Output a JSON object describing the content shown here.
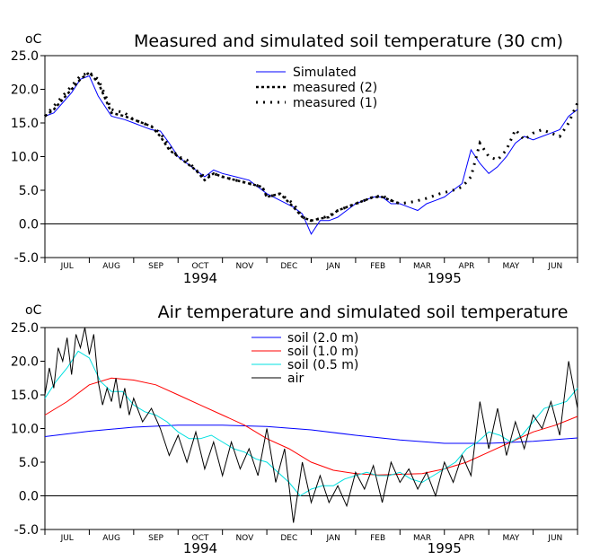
{
  "chart_data": [
    {
      "type": "line",
      "title": "Measured and simulated soil temperature (30 cm)",
      "ylabel": "oC",
      "ylim": [
        -5,
        25
      ],
      "yticks": [
        "25.0",
        "20.0",
        "15.0",
        "10.0",
        "5.0",
        "0.0",
        "-5.0"
      ],
      "month_labels": [
        "JUL",
        "AUG",
        "SEP",
        "OCT",
        "NOV",
        "DEC",
        "JAN",
        "FEB",
        "MAR",
        "APR",
        "MAY",
        "JUN"
      ],
      "years": [
        "1994",
        "1995"
      ],
      "x_unit": "months since 1 Jul 1994",
      "series": [
        {
          "name": "Simulated",
          "color": "#0000ff",
          "style": "solid",
          "x": [
            0,
            0.2,
            0.4,
            0.6,
            0.8,
            1.0,
            1.2,
            1.5,
            1.8,
            2.0,
            2.2,
            2.4,
            2.6,
            2.8,
            3.0,
            3.2,
            3.4,
            3.6,
            3.8,
            4.0,
            4.3,
            4.6,
            4.9,
            5.0,
            5.3,
            5.6,
            5.8,
            6.0,
            6.1,
            6.2,
            6.4,
            6.6,
            6.8,
            7.0,
            7.2,
            7.4,
            7.6,
            7.8,
            8.0,
            8.2,
            8.4,
            8.6,
            8.8,
            9.0,
            9.2,
            9.4,
            9.6,
            9.8,
            10.0,
            10.2,
            10.4,
            10.6,
            10.8,
            11.0,
            11.2,
            11.4,
            11.6,
            11.8,
            12.0
          ],
          "values": [
            16,
            16.5,
            18,
            19.5,
            21.5,
            22,
            19,
            16,
            15.5,
            15,
            14.5,
            14,
            13.8,
            12,
            10,
            9,
            8,
            7,
            8,
            7.5,
            7,
            6.5,
            5,
            4.5,
            3.5,
            2.5,
            1.5,
            -1.5,
            -0.5,
            0.5,
            0.5,
            1,
            2,
            3,
            3.5,
            4,
            4,
            3,
            3,
            2.5,
            2,
            3,
            3.5,
            4,
            5,
            6,
            11,
            9,
            7.5,
            8.5,
            10,
            12,
            13,
            12.5,
            13,
            13.5,
            14,
            16,
            17
          ]
        },
        {
          "name": "measured (2)",
          "color": "#000000",
          "style": "dashed",
          "x": [
            0,
            0.2,
            0.4,
            0.6,
            0.8,
            1.0,
            1.2,
            1.5,
            1.8,
            2.0,
            2.2,
            2.4,
            2.6,
            2.8,
            3.0,
            3.2,
            3.4,
            3.6,
            3.8,
            4.0,
            4.3,
            4.6,
            4.9,
            5.0,
            5.3,
            5.6,
            5.8,
            6.0,
            6.2,
            6.4,
            6.6,
            6.8,
            7.0,
            7.2,
            7.4,
            7.6,
            7.8,
            8.0
          ],
          "values": [
            16,
            17,
            18.5,
            20,
            21.5,
            22.5,
            21,
            16.5,
            16,
            15.5,
            15,
            14.5,
            13,
            11,
            10,
            9,
            8,
            6.5,
            7.5,
            7,
            6.5,
            6,
            5.5,
            4,
            4.5,
            2.5,
            1,
            0.5,
            0.8,
            1,
            2,
            2.5,
            3,
            3.5,
            4,
            4,
            3.5,
            3
          ]
        },
        {
          "name": "measured (1)",
          "color": "#000000",
          "style": "dotted",
          "x": [
            0,
            0.2,
            0.4,
            0.6,
            0.8,
            1.0,
            1.2,
            1.5,
            1.8,
            2.0,
            2.2,
            2.4,
            2.6,
            2.8,
            3.0,
            3.2,
            3.4,
            3.6,
            3.8,
            4.0,
            4.3,
            4.6,
            4.9,
            5.0,
            5.3,
            5.6,
            5.8,
            6.0,
            6.2,
            6.4,
            6.6,
            6.8,
            7.0,
            7.2,
            7.4,
            7.6,
            7.8,
            8.0,
            8.3,
            8.6,
            8.9,
            9.2,
            9.4,
            9.6,
            9.8,
            10.0,
            10.2,
            10.4,
            10.6,
            10.8,
            11.0,
            11.2,
            11.4,
            11.6,
            11.8,
            12.0
          ],
          "values": [
            16,
            17.5,
            19,
            20.5,
            22,
            22.5,
            21.5,
            17,
            16.5,
            15.5,
            15,
            14.5,
            13.5,
            11.5,
            10,
            9.5,
            8,
            7,
            7.5,
            7,
            6.5,
            6,
            5.5,
            4,
            4.5,
            3,
            1,
            0.5,
            0.8,
            1.2,
            2,
            2.5,
            3,
            3.5,
            4,
            4.2,
            3.5,
            3,
            3.3,
            3.8,
            4.5,
            5,
            5.5,
            7,
            12,
            10,
            9.5,
            11,
            14,
            12.5,
            13.5,
            14,
            13.5,
            13,
            15,
            18
          ]
        }
      ]
    },
    {
      "type": "line",
      "title": "Air temperature and simulated soil temperature",
      "ylabel": "oC",
      "ylim": [
        -5,
        25
      ],
      "yticks": [
        "25.0",
        "20.0",
        "15.0",
        "10.0",
        "5.0",
        "0.0",
        "-5.0"
      ],
      "month_labels": [
        "JUL",
        "AUG",
        "SEP",
        "OCT",
        "NOV",
        "DEC",
        "JAN",
        "FEB",
        "MAR",
        "APR",
        "MAY",
        "JUN"
      ],
      "years": [
        "1994",
        "1995"
      ],
      "x_unit": "months since 1 Jul 1994",
      "series": [
        {
          "name": "soil (2.0 m)",
          "color": "#0000ff",
          "x": [
            0,
            1,
            2,
            3,
            4,
            5,
            6,
            7,
            8,
            9,
            10,
            11,
            12
          ],
          "values": [
            8.8,
            9.6,
            10.2,
            10.5,
            10.5,
            10.3,
            9.8,
            9,
            8.3,
            7.8,
            7.8,
            8.1,
            8.6
          ]
        },
        {
          "name": "soil (1.0 m)",
          "color": "#ff0000",
          "x": [
            0,
            0.5,
            1,
            1.5,
            2,
            2.5,
            3,
            3.5,
            4,
            4.5,
            5,
            5.5,
            6,
            6.5,
            7,
            7.5,
            8,
            8.5,
            9,
            9.5,
            10,
            10.5,
            11,
            11.5,
            12
          ],
          "values": [
            12,
            14,
            16.5,
            17.5,
            17.2,
            16.5,
            15,
            13.5,
            12,
            10.5,
            8.5,
            7,
            5,
            3.8,
            3.3,
            3.1,
            3.2,
            3.3,
            4,
            5,
            6.5,
            8,
            9.5,
            10.5,
            11.8
          ]
        },
        {
          "name": "soil (0.5 m)",
          "color": "#00e0e0",
          "x": [
            0,
            0.25,
            0.5,
            0.75,
            1,
            1.25,
            1.5,
            1.75,
            2,
            2.25,
            2.5,
            2.75,
            3,
            3.25,
            3.5,
            3.75,
            4,
            4.25,
            4.5,
            4.75,
            5,
            5.25,
            5.5,
            5.75,
            6,
            6.25,
            6.5,
            6.75,
            7,
            7.25,
            7.5,
            7.75,
            8,
            8.25,
            8.5,
            8.75,
            9,
            9.25,
            9.5,
            9.75,
            10,
            10.25,
            10.5,
            10.75,
            11,
            11.25,
            11.5,
            11.75,
            12
          ],
          "values": [
            14.5,
            17,
            19,
            21.5,
            20.5,
            17,
            15.5,
            15.5,
            13.5,
            12.5,
            12,
            11,
            9.5,
            8.5,
            8.5,
            9,
            8,
            7,
            6.5,
            5.5,
            5,
            3.5,
            2,
            0,
            1,
            1.5,
            1.5,
            2.5,
            3,
            3.5,
            3,
            3,
            3.5,
            2.5,
            2,
            3,
            4,
            5,
            7,
            8,
            9.5,
            9,
            8,
            9,
            11,
            13,
            13.5,
            14,
            16
          ]
        },
        {
          "name": "air",
          "color": "#000000",
          "x": [
            0,
            0.1,
            0.2,
            0.3,
            0.4,
            0.5,
            0.6,
            0.7,
            0.8,
            0.9,
            1.0,
            1.1,
            1.2,
            1.3,
            1.4,
            1.5,
            1.6,
            1.7,
            1.8,
            1.9,
            2.0,
            2.2,
            2.4,
            2.6,
            2.8,
            3.0,
            3.2,
            3.4,
            3.6,
            3.8,
            4.0,
            4.2,
            4.4,
            4.6,
            4.8,
            5.0,
            5.2,
            5.4,
            5.6,
            5.8,
            6.0,
            6.2,
            6.4,
            6.6,
            6.8,
            7.0,
            7.2,
            7.4,
            7.6,
            7.8,
            8.0,
            8.2,
            8.4,
            8.6,
            8.8,
            9.0,
            9.2,
            9.4,
            9.6,
            9.8,
            10.0,
            10.2,
            10.4,
            10.6,
            10.8,
            11.0,
            11.2,
            11.4,
            11.6,
            11.8,
            12.0
          ],
          "values": [
            15,
            19,
            16,
            22,
            20,
            23.5,
            18,
            24,
            22,
            25,
            21,
            24,
            17,
            13.5,
            16,
            14,
            17.5,
            13,
            16,
            12,
            14.5,
            11,
            13,
            10,
            6,
            9,
            5,
            9.5,
            4,
            8,
            3,
            8,
            4,
            7,
            3,
            10,
            2,
            7,
            -4,
            5,
            -1,
            3,
            -1,
            1.5,
            -1.5,
            3.5,
            1,
            4.5,
            -1,
            5,
            2,
            4,
            1,
            3.5,
            0,
            5,
            2,
            6,
            3,
            14,
            7,
            13,
            6,
            11,
            7,
            12,
            10,
            14,
            9,
            20,
            13
          ]
        }
      ]
    }
  ]
}
